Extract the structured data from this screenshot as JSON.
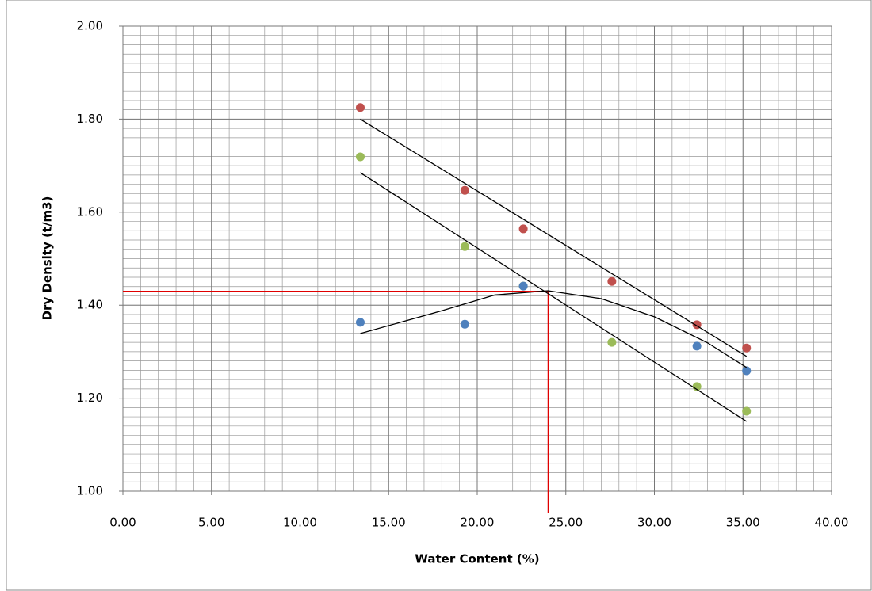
{
  "chart_data": {
    "type": "scatter",
    "x_label": "Water Content (%)",
    "y_label": "Dry Density (t/m3)",
    "xlim": [
      0,
      40
    ],
    "ylim": [
      1.0,
      2.0
    ],
    "xticks": [
      {
        "value": 0,
        "label": "0.00"
      },
      {
        "value": 5,
        "label": "5.00"
      },
      {
        "value": 10,
        "label": "10.00"
      },
      {
        "value": 15,
        "label": "15.00"
      },
      {
        "value": 20,
        "label": "20.00"
      },
      {
        "value": 25,
        "label": "25.00"
      },
      {
        "value": 30,
        "label": "30.00"
      },
      {
        "value": 35,
        "label": "35.00"
      },
      {
        "value": 40,
        "label": "40.00"
      }
    ],
    "yticks": [
      {
        "value": 1.0,
        "label": "1.00"
      },
      {
        "value": 1.2,
        "label": "1.20"
      },
      {
        "value": 1.4,
        "label": "1.40"
      },
      {
        "value": 1.6,
        "label": "1.60"
      },
      {
        "value": 1.8,
        "label": "1.80"
      },
      {
        "value": 2.0,
        "label": "2.00"
      }
    ],
    "grid": true,
    "minor_grid_step": [
      1,
      0.02
    ],
    "series": [
      {
        "color": "#c0504d",
        "x": [
          13.4,
          19.3,
          22.6,
          27.6,
          32.4,
          35.2
        ],
        "values": [
          1.825,
          1.647,
          1.564,
          1.451,
          1.358,
          1.308
        ]
      },
      {
        "color": "#9bbb59",
        "x": [
          13.4,
          19.3,
          22.6,
          27.6,
          32.4,
          35.2
        ],
        "values": [
          1.719,
          1.526,
          1.441,
          1.32,
          1.225,
          1.172
        ]
      },
      {
        "color": "#4f81bd",
        "x": [
          13.4,
          19.3,
          22.6,
          32.4,
          35.2
        ],
        "values": [
          1.363,
          1.359,
          1.441,
          1.312,
          1.259
        ]
      }
    ],
    "trendlines": [
      {
        "color": "#000000",
        "x": [
          13.4,
          35.2
        ],
        "values": [
          1.8,
          1.29
        ]
      },
      {
        "color": "#000000",
        "x": [
          13.4,
          35.2
        ],
        "values": [
          1.685,
          1.15
        ]
      },
      {
        "color": "#000000",
        "x": [
          13.4,
          18,
          21,
          24,
          27,
          30,
          33,
          35.2
        ],
        "values": [
          1.339,
          1.388,
          1.422,
          1.431,
          1.414,
          1.375,
          1.319,
          1.266
        ]
      }
    ],
    "reference": {
      "x": 24,
      "y": 1.43,
      "color": "#e00000"
    }
  }
}
